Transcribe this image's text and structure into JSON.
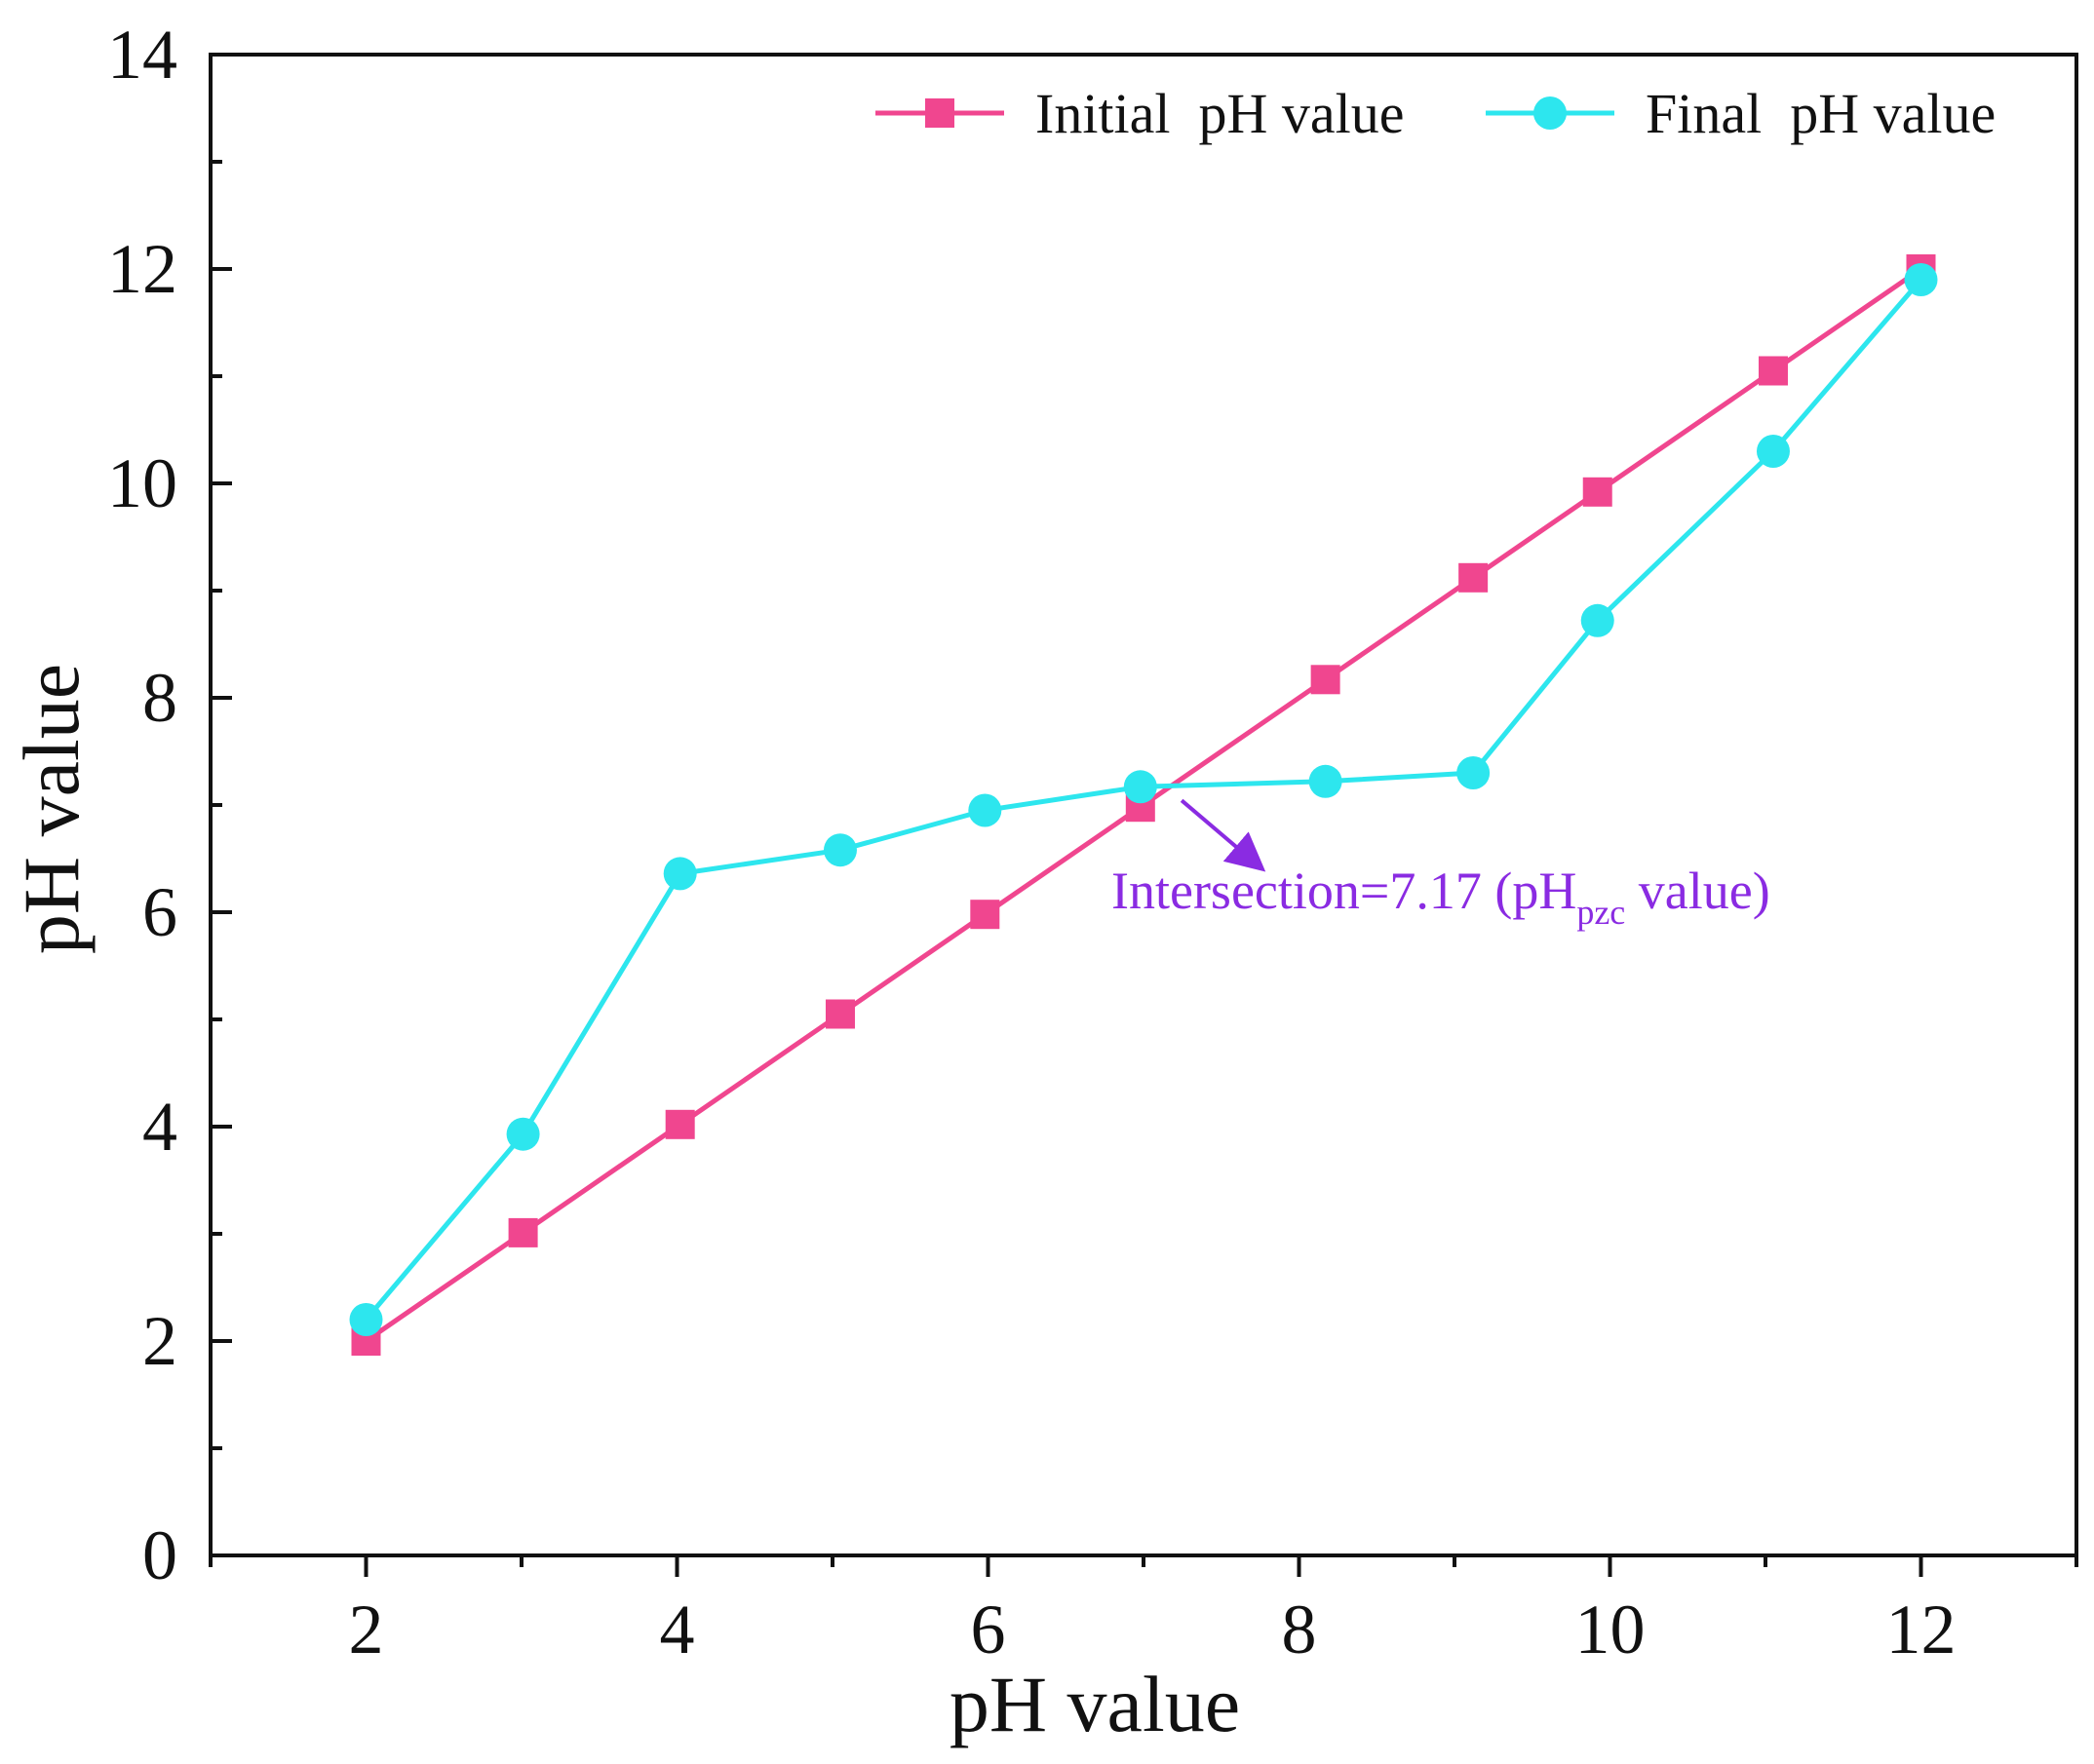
{
  "chart_data": {
    "type": "line",
    "title": "",
    "xlabel": "pH value",
    "ylabel": "pH value",
    "xlim": [
      1,
      13
    ],
    "ylim": [
      0,
      14
    ],
    "x_major_ticks": [
      2,
      4,
      6,
      8,
      10,
      12
    ],
    "x_tick_labels": [
      "2",
      "4",
      "6",
      "8",
      "10",
      "12"
    ],
    "y_major_ticks": [
      0,
      2,
      4,
      6,
      8,
      10,
      12,
      14
    ],
    "y_tick_labels": [
      "0",
      "2",
      "4",
      "6",
      "8",
      "10",
      "12",
      "14"
    ],
    "legend_position": "top-right",
    "series": [
      {
        "name": "Initial  pH value",
        "color": "#f0468f",
        "marker": "square",
        "x": [
          2,
          3.01,
          4.02,
          5.05,
          5.98,
          6.98,
          8.17,
          9.12,
          9.92,
          11.05,
          12.0
        ],
        "values": [
          2.0,
          3.01,
          4.02,
          5.05,
          5.98,
          6.98,
          8.17,
          9.12,
          9.92,
          11.05,
          12.0
        ]
      },
      {
        "name": "Final  pH value",
        "color": "#2de6ee",
        "marker": "circle",
        "x": [
          2,
          3.01,
          4.02,
          5.05,
          5.98,
          6.98,
          8.17,
          9.12,
          9.92,
          11.05,
          12.0
        ],
        "values": [
          2.2,
          3.93,
          6.36,
          6.58,
          6.95,
          7.17,
          7.22,
          7.3,
          8.72,
          10.3,
          11.9
        ]
      }
    ],
    "annotation": {
      "text_main": "Intersection=7.17 (pH",
      "text_sub": "pzc",
      "text_end": " value)",
      "color": "#8a2be2",
      "point_x": 7.17,
      "point_y": 7.17
    }
  }
}
